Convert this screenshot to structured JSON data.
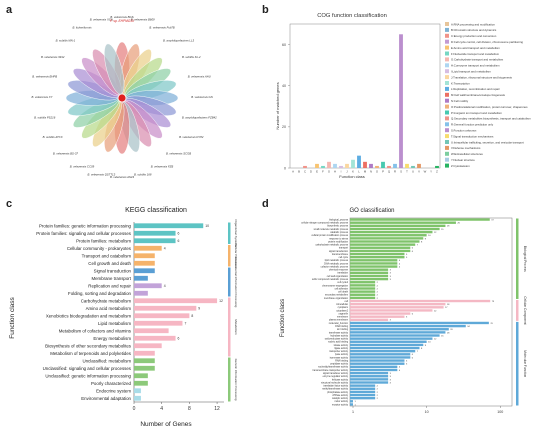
{
  "panel_labels": {
    "a": "a",
    "b": "b",
    "c": "c",
    "d": "d"
  },
  "panel_a": {
    "center_label": "",
    "title_label": "P. sp. EHPMO3X",
    "leaves": [
      "B. velezensis BGS",
      "B. velezensis B609",
      "B. velezensis Fsb7B",
      "B. amyloliquefaciens LL3",
      "B. subtilis KL-2",
      "B. velezensis AHU",
      "B. velezensis GN",
      "B. amyloliquefaciens FZB42",
      "B. velezensis DY82",
      "B. velezensis SCGB",
      "B. velezensis FZB",
      "B. subtilis 168",
      "B. velezensis AS43",
      "B. velezensis QST713",
      "B. velezensis CC09",
      "B. velezensis BS-37",
      "B. subtilis ATCC",
      "B. subtilis PS216",
      "B. velezensis XY",
      "B. velezensis EHPB",
      "B. velezensis 9912",
      "B. subtilis MN-1",
      "B. licheniformis",
      "B. velezensis XCN"
    ]
  },
  "panel_b": {
    "title": "COG function classification",
    "ylabel": "Number of matched genes",
    "xlabel": "Function class",
    "yticks": [
      "0",
      "20",
      "40",
      "60"
    ],
    "legend": [
      {
        "code": "A",
        "label": "A:RNA processing and modification",
        "color": "#e7c59a"
      },
      {
        "code": "B",
        "label": "B:Chromatin structure and dynamics",
        "color": "#7fb3d5"
      },
      {
        "code": "C",
        "label": "C:Energy production and conversion",
        "color": "#f1948a"
      },
      {
        "code": "D",
        "label": "D:Cell cycle control, cell division, chromosome partitioning",
        "color": "#c39bd3"
      },
      {
        "code": "E",
        "label": "E:Amino acid transport and metabolism",
        "color": "#f8c471"
      },
      {
        "code": "F",
        "label": "F:Nucleotide transport and metabolism",
        "color": "#76d7c4"
      },
      {
        "code": "G",
        "label": "G:Carbohydrate transport and metabolism",
        "color": "#f5b7b1"
      },
      {
        "code": "H",
        "label": "H:Coenzyme transport and metabolism",
        "color": "#aed6f1"
      },
      {
        "code": "I",
        "label": "I:Lipid transport and metabolism",
        "color": "#d7bde2"
      },
      {
        "code": "J",
        "label": "J:Translation, ribosomal structure and biogenesis",
        "color": "#fad7a0"
      },
      {
        "code": "K",
        "label": "K:Transcription",
        "color": "#a3e4d7"
      },
      {
        "code": "L",
        "label": "L:Replication, recombination and repair",
        "color": "#5dade2"
      },
      {
        "code": "M",
        "label": "M:Cell wall/membrane/envelope biogenesis",
        "color": "#ec7063"
      },
      {
        "code": "N",
        "label": "N:Cell motility",
        "color": "#af7ac5"
      },
      {
        "code": "O",
        "label": "O:Posttranslational modification, protein turnover, chaperones",
        "color": "#f0b27a"
      },
      {
        "code": "P",
        "label": "P:Inorganic ion transport and metabolism",
        "color": "#48c9b0"
      },
      {
        "code": "Q",
        "label": "Q:Secondary metabolites biosynthesis, transport and catabolism",
        "color": "#f1948a"
      },
      {
        "code": "R",
        "label": "R:General function prediction only",
        "color": "#85c1e9"
      },
      {
        "code": "S",
        "label": "S:Function unknown",
        "color": "#bb8fce"
      },
      {
        "code": "T",
        "label": "T:Signal transduction mechanisms",
        "color": "#f7dc6f"
      },
      {
        "code": "U",
        "label": "U:Intracellular trafficking, secretion, and vesicular transport",
        "color": "#73c6b6"
      },
      {
        "code": "V",
        "label": "V:Defense mechanisms",
        "color": "#e59866"
      },
      {
        "code": "W",
        "label": "W:Extracellular structures",
        "color": "#7dcea0"
      },
      {
        "code": "Y",
        "label": "Y:Nuclear structure",
        "color": "#a9cce3"
      },
      {
        "code": "Z",
        "label": "Z:Cytoskeleton",
        "color": "#28b463"
      }
    ]
  },
  "panel_c": {
    "title": "KEGG classification",
    "ylabel": "Function class",
    "xlabel": "Number of Genes",
    "xticks": [
      "0",
      "4",
      "8",
      "12"
    ],
    "group_labels": [
      "Metabolism",
      "Genetic Information Processing",
      "Environmental Information Processing",
      "Cellular Processes",
      "Organismal Systems"
    ]
  },
  "panel_d": {
    "title": "GO classification",
    "ylabel": "Function class",
    "group_labels": [
      "Biological Process",
      "Cellular Component",
      "Molecular Function"
    ],
    "xticks": [
      "1",
      "10",
      "100"
    ]
  },
  "chart_data": [
    {
      "type": "bar",
      "title": "COG function classification",
      "xlabel": "Function class",
      "ylabel": "Number of matched genes",
      "ylim": [
        0,
        70
      ],
      "categories": [
        "A",
        "B",
        "C",
        "D",
        "E",
        "F",
        "G",
        "H",
        "I",
        "J",
        "K",
        "L",
        "M",
        "N",
        "O",
        "P",
        "Q",
        "R",
        "S",
        "T",
        "U",
        "V",
        "W",
        "Y",
        "Z"
      ],
      "values": [
        0,
        0,
        1,
        0,
        2,
        1,
        3,
        2,
        1,
        2,
        4,
        6,
        3,
        2,
        1,
        3,
        1,
        2,
        65,
        2,
        1,
        2,
        0,
        0,
        1
      ]
    },
    {
      "type": "bar",
      "orientation": "horizontal",
      "title": "KEGG classification",
      "xlabel": "Number of Genes",
      "ylabel": "Function class",
      "xlim": [
        0,
        13
      ],
      "categories": [
        "Protein families: genetic information processing",
        "Protein families: signaling and cellular processes",
        "Protein families: metabolism",
        "Cellular community - prokaryotes",
        "Transport and catabolism",
        "Cell growth and death",
        "Signal transduction",
        "Membrane transport",
        "Replication and repair",
        "Folding, sorting and degradation",
        "Carbohydrate metabolism",
        "Amino acid metabolism",
        "Xenobiotics biodegradation and metabolism",
        "Lipid metabolism",
        "Metabolism of cofactors and vitamins",
        "Energy metabolism",
        "Biosynthesis of other secondary metabolites",
        "Metabolism of terpenoids and polyketides",
        "Unclassified: metabolism",
        "Unclassified: signaling and cellular processes",
        "Unclassified: genetic information processing",
        "Poorly characterized",
        "Endocrine system",
        "Environmental adaptation"
      ],
      "values": [
        10,
        6,
        6,
        4,
        3,
        3,
        3,
        2,
        4,
        2,
        12,
        9,
        8,
        7,
        5,
        6,
        4,
        3,
        3,
        3,
        2,
        2,
        1,
        1
      ],
      "colors": [
        "#5dc4c4",
        "#5dc4c4",
        "#5dc4c4",
        "#f5b36b",
        "#f5b36b",
        "#f5b36b",
        "#5a9fd4",
        "#5a9fd4",
        "#c2a3d9",
        "#c2a3d9",
        "#f6b6c3",
        "#f6b6c3",
        "#f6b6c3",
        "#f6b6c3",
        "#f6b6c3",
        "#f6b6c3",
        "#f6b6c3",
        "#f6b6c3",
        "#8cc97a",
        "#8cc97a",
        "#8cc97a",
        "#8cc97a",
        "#a8dce8",
        "#a8dce8"
      ],
      "data_labels": [
        "10",
        "6",
        "6",
        "4",
        "",
        "",
        "",
        "",
        "4",
        "",
        "12",
        "9",
        "8",
        "7",
        "",
        "6",
        "",
        "",
        "",
        "",
        "",
        "",
        "",
        ""
      ]
    },
    {
      "type": "bar",
      "orientation": "horizontal",
      "title": "GO classification",
      "ylabel": "Function class",
      "xscale": "log",
      "categories": [
        "biological_process",
        "cellular nitrogen compound metabolic process",
        "biosynthetic process",
        "small molecule metabolic process",
        "catabolic process",
        "cellular protein modification process",
        "response to stress",
        "protein modification",
        "carbohydrate metabolic process",
        "transport",
        "signal transduction",
        "transmembrane",
        "cell cycle",
        "lipid metabolic process",
        "DNA metabolic process",
        "cofactor metabolic process",
        "chemical response",
        "translation",
        "cell wall organization",
        "sulfur compound metabolic process",
        "cell cycle2",
        "chromosome segregation",
        "cell adhesion",
        "cell death",
        "secondary metabolism",
        "membrane organization",
        "cell",
        "intracellular",
        "cytoplasm",
        "cytoplasm2",
        "organelle",
        "membrane",
        "plasma membrane",
        "molecular_function",
        "DNA binding",
        "ion binding",
        "transferase activity",
        "hydrolase activity",
        "oxidoreductase activity",
        "nucleic acid binding",
        "kinase activity",
        "ligase activity",
        "transporter activity",
        "lyase activity",
        "isomerase activity",
        "RNA binding",
        "peptidase activity",
        "nucleotidyltransferase activity",
        "transmembrane transporter activity",
        "signal transducer activity",
        "enzyme regulator activity",
        "helicase activity",
        "structural molecule activity",
        "translation factor activity",
        "methyltransferase activity",
        "phosphatase activity",
        "ATPase activity",
        "catalytic activity",
        "motor activity",
        "receptor activity"
      ],
      "values": [
        72,
        25,
        18,
        15,
        12,
        10,
        9,
        8,
        7,
        6,
        6,
        5,
        5,
        4,
        4,
        4,
        3,
        3,
        3,
        3,
        2,
        2,
        2,
        2,
        2,
        2,
        73,
        18,
        17,
        12,
        6,
        5,
        3,
        70,
        34,
        20,
        18,
        15,
        12,
        10,
        9,
        8,
        7,
        6,
        6,
        5,
        5,
        4,
        4,
        3,
        3,
        3,
        3,
        2,
        2,
        2,
        2,
        2,
        1,
        1
      ],
      "groups": [
        "Biological Process",
        "Cellular Component",
        "Molecular Function"
      ]
    }
  ]
}
